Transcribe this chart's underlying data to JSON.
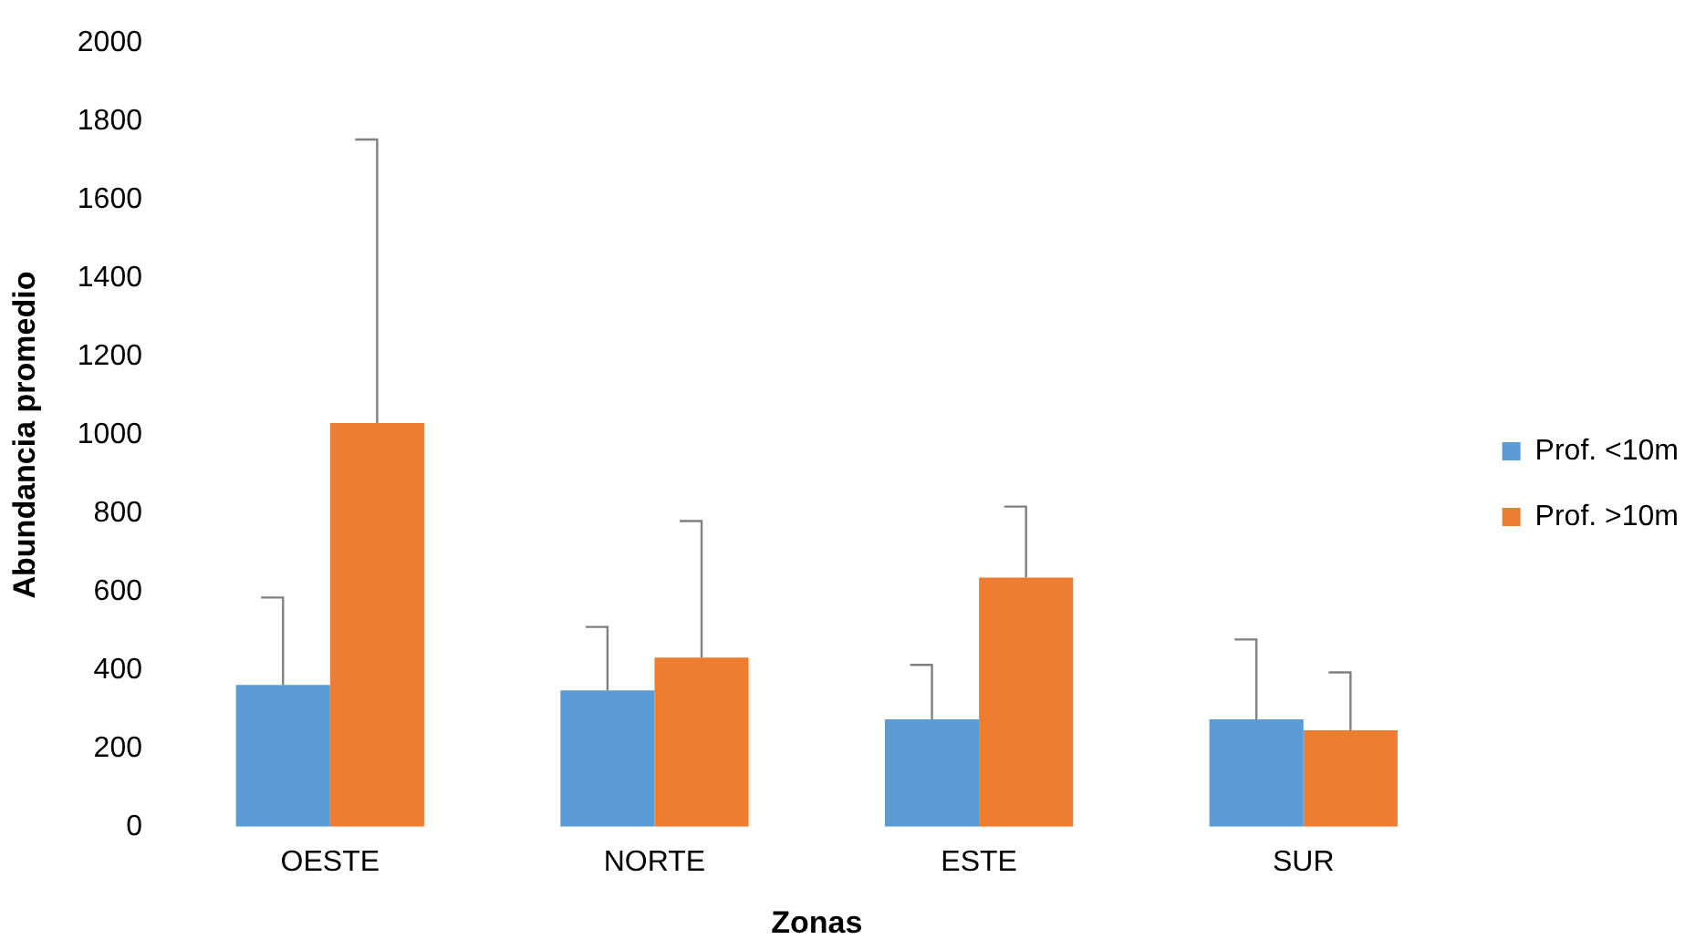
{
  "chart_data": {
    "type": "bar",
    "xlabel": "Zonas",
    "ylabel": "Abundancia promedio",
    "categories": [
      "OESTE",
      "NORTE",
      "ESTE",
      "SUR"
    ],
    "series": [
      {
        "name": "Prof. <10m",
        "color": "#5b9bd5",
        "values": [
          362,
          348,
          274,
          274
        ],
        "errors": [
          [
            362,
            585
          ],
          [
            348,
            510
          ],
          [
            274,
            413
          ],
          [
            274,
            478
          ]
        ]
      },
      {
        "name": "Prof. >10m",
        "color": "#ed7d31",
        "values": [
          1030,
          432,
          636,
          246
        ],
        "errors": [
          [
            1030,
            1754
          ],
          [
            432,
            780
          ],
          [
            636,
            817
          ],
          [
            246,
            394
          ]
        ]
      }
    ],
    "ylim": [
      0,
      2000
    ],
    "yticks": [
      0,
      200,
      400,
      600,
      800,
      1000,
      1200,
      1400,
      1600,
      1800,
      2000
    ],
    "grid": false,
    "legend": "right"
  }
}
